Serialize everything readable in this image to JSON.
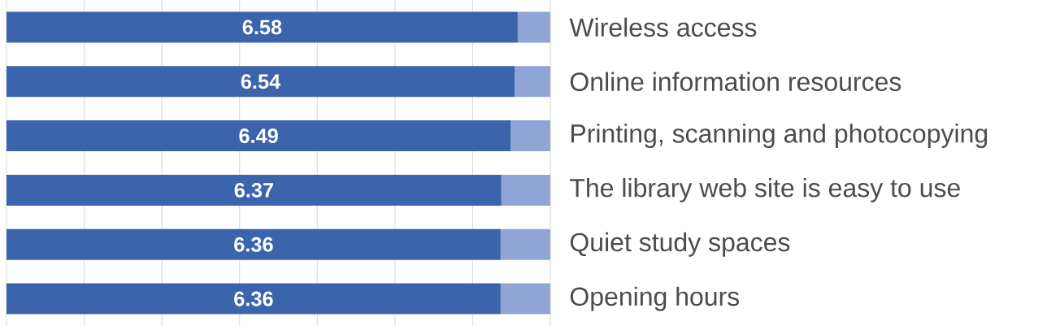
{
  "chart_data": {
    "type": "bar",
    "orientation": "horizontal",
    "stacked": true,
    "categories": [
      "Wireless access",
      "Online information resources",
      "Printing, scanning and photocopying",
      "The library web site is easy to use",
      "Quiet study spaces",
      "Opening hours"
    ],
    "series": [
      {
        "color": "#3c64ad",
        "values": [
          6.58,
          6.54,
          6.49,
          6.37,
          6.36,
          6.36
        ],
        "value_labels": [
          "6.58",
          "6.54",
          "6.49",
          "6.37",
          "6.36",
          "6.36"
        ]
      },
      {
        "color": "#8ea5d6",
        "values": [
          0.42,
          0.46,
          0.51,
          0.63,
          0.64,
          0.64
        ]
      }
    ],
    "xlim": [
      0,
      7
    ],
    "xticks": [
      {
        "value": 0,
        "label": null
      },
      {
        "value": 1,
        "label": null
      },
      {
        "value": 2,
        "label": null
      },
      {
        "value": 3,
        "label": null
      },
      {
        "value": 4,
        "label": null
      },
      {
        "value": 5,
        "label": null
      },
      {
        "value": 6,
        "label": null
      },
      {
        "value": 7,
        "label": null
      }
    ],
    "grid": "x",
    "tick_labels": "y"
  }
}
